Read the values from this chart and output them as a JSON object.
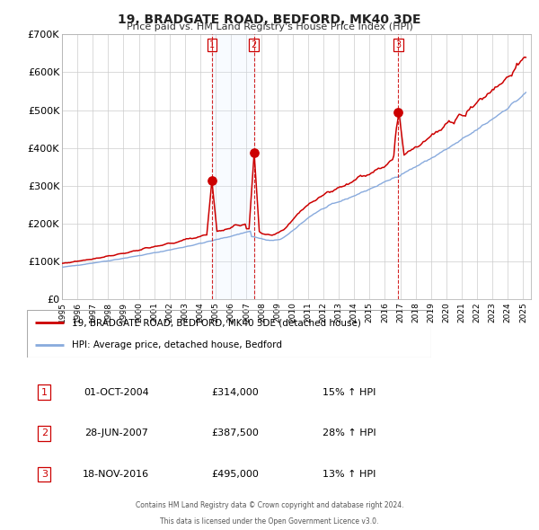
{
  "title": "19, BRADGATE ROAD, BEDFORD, MK40 3DE",
  "subtitle": "Price paid vs. HM Land Registry's House Price Index (HPI)",
  "legend_property": "19, BRADGATE ROAD, BEDFORD, MK40 3DE (detached house)",
  "legend_hpi": "HPI: Average price, detached house, Bedford",
  "transactions": [
    {
      "num": "1",
      "date": "01-OCT-2004",
      "price": "£314,000",
      "pct": "15%",
      "dir": "↑"
    },
    {
      "num": "2",
      "date": "28-JUN-2007",
      "price": "£387,500",
      "pct": "28%",
      "dir": "↑"
    },
    {
      "num": "3",
      "date": "18-NOV-2016",
      "price": "£495,000",
      "pct": "13%",
      "dir": "↑"
    }
  ],
  "transaction_dates_decimal": [
    2004.75,
    2007.49,
    2016.88
  ],
  "transaction_prices": [
    314000,
    387500,
    495000
  ],
  "footer1": "Contains HM Land Registry data © Crown copyright and database right 2024.",
  "footer2": "This data is licensed under the Open Government Licence v3.0.",
  "property_color": "#cc0000",
  "hpi_color": "#88aadd",
  "shade_color": "#ddeeff",
  "background_color": "#ffffff",
  "grid_color": "#cccccc",
  "ylim": [
    0,
    700000
  ],
  "yticks": [
    0,
    100000,
    200000,
    300000,
    400000,
    500000,
    600000,
    700000
  ],
  "xlim_start": 1995.0,
  "xlim_end": 2025.5
}
